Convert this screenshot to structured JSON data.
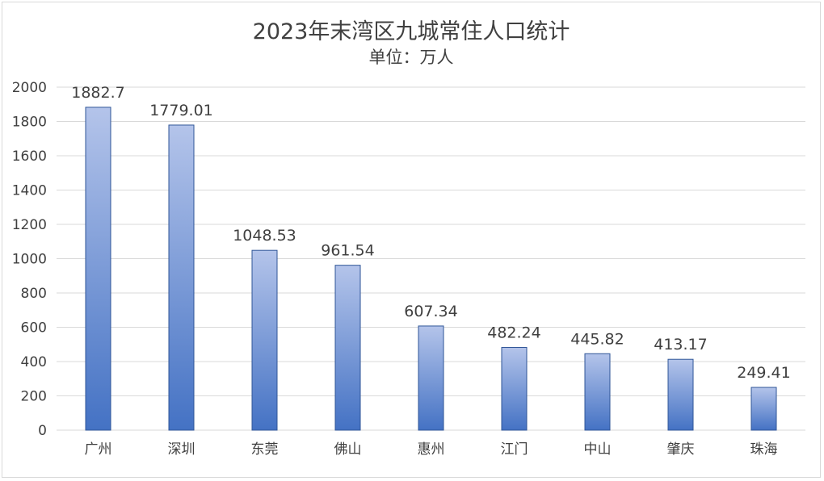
{
  "chart_data": {
    "type": "bar",
    "title": "2023年末湾区九城常住人口统计",
    "subtitle": "单位：万人",
    "categories": [
      "广州",
      "深圳",
      "东莞",
      "佛山",
      "惠州",
      "江门",
      "中山",
      "肇庆",
      "珠海"
    ],
    "values": [
      1882.7,
      1779.01,
      1048.53,
      961.54,
      607.34,
      482.24,
      445.82,
      413.17,
      249.41
    ],
    "value_labels": [
      "1882.7",
      "1779.01",
      "1048.53",
      "961.54",
      "607.34",
      "482.24",
      "445.82",
      "413.17",
      "249.41"
    ],
    "yticks": [
      "0",
      "200",
      "400",
      "600",
      "800",
      "1000",
      "1200",
      "1400",
      "1600",
      "1800",
      "2000"
    ],
    "ylim": [
      0,
      2000
    ],
    "grid": true,
    "legend": "none",
    "colors": {
      "bar_top": "#b4c4ea",
      "bar_bottom": "#4472c4",
      "bar_border": "#2f5597",
      "grid": "#d9d9d9",
      "text": "#404040"
    }
  }
}
